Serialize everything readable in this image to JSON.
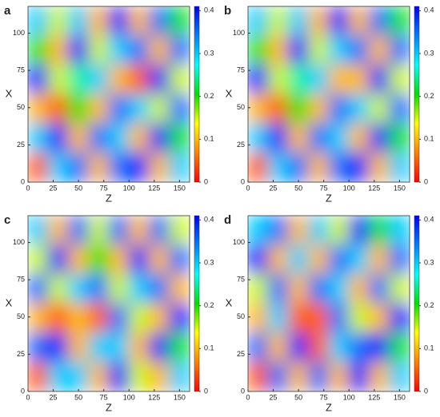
{
  "chart_data": [
    {
      "type": "heatmap",
      "label": "a",
      "xlabel": "Z",
      "ylabel": "X",
      "xlim": [
        0,
        160
      ],
      "ylim": [
        0,
        118
      ],
      "xticks": [
        0,
        25,
        50,
        75,
        100,
        125,
        150
      ],
      "yticks": [
        0,
        25,
        50,
        75,
        100
      ],
      "clim": [
        0,
        0.41
      ],
      "cticks": [
        0,
        0.1,
        0.2,
        0.3,
        0.4
      ],
      "colormap": [
        "#ff0000",
        "#ff8000",
        "#ffff00",
        "#00e000",
        "#00ffff",
        "#0080ff",
        "#0000ff"
      ],
      "z": [
        [
          0.3,
          0.15,
          0.3,
          0.1,
          0.4,
          0.1,
          0.35,
          0.2
        ],
        [
          0.2,
          0.1,
          0.4,
          0.15,
          0.3,
          0.35,
          0.1,
          0.35
        ],
        [
          0.4,
          0.15,
          0.25,
          0.3,
          0.1,
          0.05,
          0.4,
          0.15
        ],
        [
          0.1,
          0.05,
          0.2,
          0.1,
          0.35,
          0.3,
          0.15,
          0.35
        ],
        [
          0.3,
          0.4,
          0.1,
          0.35,
          0.3,
          0.1,
          0.4,
          0.2
        ],
        [
          0.05,
          0.3,
          0.35,
          0.1,
          0.35,
          0.4,
          0.1,
          0.3
        ]
      ]
    },
    {
      "type": "heatmap",
      "label": "b",
      "xlabel": "Z",
      "ylabel": "X",
      "xlim": [
        0,
        160
      ],
      "ylim": [
        0,
        118
      ],
      "xticks": [
        0,
        25,
        50,
        75,
        100,
        125,
        150
      ],
      "yticks": [
        0,
        25,
        50,
        75,
        100
      ],
      "clim": [
        0,
        0.41
      ],
      "cticks": [
        0,
        0.1,
        0.2,
        0.3,
        0.4
      ],
      "colormap": [
        "#ff0000",
        "#ff8000",
        "#ffff00",
        "#00e000",
        "#00ffff",
        "#0080ff",
        "#0000ff"
      ],
      "z": [
        [
          0.3,
          0.15,
          0.3,
          0.1,
          0.4,
          0.1,
          0.35,
          0.2
        ],
        [
          0.2,
          0.1,
          0.4,
          0.15,
          0.3,
          0.35,
          0.1,
          0.35
        ],
        [
          0.4,
          0.15,
          0.25,
          0.3,
          0.1,
          0.1,
          0.4,
          0.15
        ],
        [
          0.1,
          0.05,
          0.2,
          0.1,
          0.35,
          0.3,
          0.15,
          0.35
        ],
        [
          0.3,
          0.4,
          0.1,
          0.35,
          0.3,
          0.1,
          0.4,
          0.2
        ],
        [
          0.05,
          0.3,
          0.35,
          0.1,
          0.35,
          0.4,
          0.1,
          0.3
        ]
      ]
    },
    {
      "type": "heatmap",
      "label": "c",
      "xlabel": "Z",
      "ylabel": "X",
      "xlim": [
        0,
        160
      ],
      "ylim": [
        0,
        118
      ],
      "xticks": [
        0,
        25,
        50,
        75,
        100,
        125,
        150
      ],
      "yticks": [
        0,
        25,
        50,
        75,
        100
      ],
      "clim": [
        0,
        0.41
      ],
      "cticks": [
        0,
        0.1,
        0.2,
        0.3,
        0.4
      ],
      "colormap": [
        "#ff0000",
        "#ff8000",
        "#ffff00",
        "#00e000",
        "#00ffff",
        "#0080ff",
        "#0000ff"
      ],
      "z": [
        [
          0.3,
          0.1,
          0.35,
          0.15,
          0.35,
          0.1,
          0.35,
          0.15
        ],
        [
          0.15,
          0.4,
          0.1,
          0.2,
          0.1,
          0.4,
          0.1,
          0.35
        ],
        [
          0.35,
          0.15,
          0.3,
          0.35,
          0.15,
          0.3,
          0.35,
          0.1
        ],
        [
          0.1,
          0.05,
          0.1,
          0.05,
          0.35,
          0.15,
          0.1,
          0.4
        ],
        [
          0.35,
          0.4,
          0.1,
          0.3,
          0.3,
          0.1,
          0.4,
          0.2
        ],
        [
          0.05,
          0.3,
          0.3,
          0.1,
          0.4,
          0.15,
          0.1,
          0.3
        ]
      ]
    },
    {
      "type": "heatmap",
      "label": "d",
      "xlabel": "Z",
      "ylabel": "X",
      "xlim": [
        0,
        160
      ],
      "ylim": [
        0,
        118
      ],
      "xticks": [
        0,
        25,
        50,
        75,
        100,
        125,
        150
      ],
      "yticks": [
        0,
        25,
        50,
        75,
        100
      ],
      "clim": [
        0,
        0.41
      ],
      "cticks": [
        0,
        0.1,
        0.2,
        0.3,
        0.4
      ],
      "colormap": [
        "#ff0000",
        "#ff8000",
        "#ffff00",
        "#00e000",
        "#00ffff",
        "#0080ff",
        "#0000ff"
      ],
      "z": [
        [
          0.3,
          0.35,
          0.1,
          0.3,
          0.15,
          0.4,
          0.2,
          0.3
        ],
        [
          0.4,
          0.1,
          0.3,
          0.1,
          0.35,
          0.3,
          0.1,
          0.35
        ],
        [
          0.15,
          0.35,
          0.1,
          0.35,
          0.3,
          0.1,
          0.35,
          0.15
        ],
        [
          0.1,
          0.3,
          0.05,
          0.05,
          0.35,
          0.15,
          0.1,
          0.4
        ],
        [
          0.35,
          0.1,
          0.4,
          0.05,
          0.3,
          0.35,
          0.4,
          0.2
        ],
        [
          0.05,
          0.35,
          0.1,
          0.35,
          0.1,
          0.4,
          0.1,
          0.3
        ]
      ]
    }
  ]
}
